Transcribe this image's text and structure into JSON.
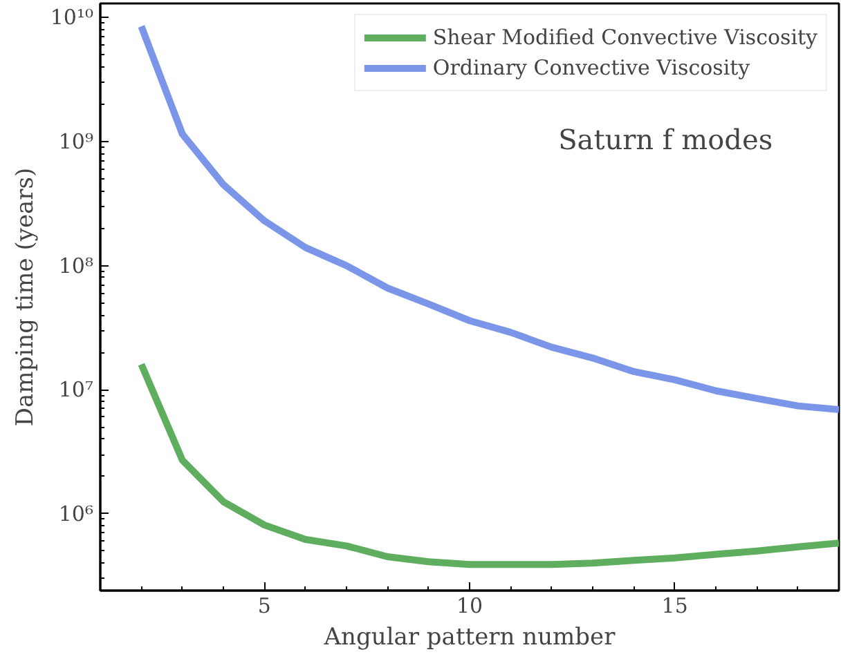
{
  "chart_data": {
    "type": "line",
    "xlabel": "Angular pattern number",
    "ylabel": "Damping time (years)",
    "annotations": [
      "Saturn f modes"
    ],
    "x": [
      2,
      3,
      4,
      5,
      6,
      7,
      8,
      9,
      10,
      11,
      12,
      13,
      14,
      15,
      16,
      17,
      18,
      19
    ],
    "series": [
      {
        "name": "Shear Modified Convective Viscosity",
        "color": "#5fad5f",
        "values": [
          16000000.0,
          2700000.0,
          1250000.0,
          810000.0,
          620000.0,
          550000.0,
          450000.0,
          410000.0,
          390000.0,
          390000.0,
          390000.0,
          400000.0,
          420000.0,
          440000.0,
          470000.0,
          500000.0,
          540000.0,
          580000.0
        ]
      },
      {
        "name": "Ordinary Convective Viscosity",
        "color": "#7b96e8",
        "values": [
          8500000000.0,
          1150000000.0,
          450000000.0,
          230000000.0,
          140000000.0,
          100000000.0,
          66000000.0,
          49000000.0,
          36000000.0,
          29000000.0,
          22000000.0,
          18000000.0,
          14000000.0,
          12000000.0,
          9800000.0,
          8500000.0,
          7400000.0,
          6900000.0
        ]
      }
    ],
    "log": "y",
    "xlim": [
      1,
      19
    ],
    "ylim": [
      240000.0,
      13000000000.0
    ],
    "xticks": [
      5,
      10,
      15
    ],
    "yticks": [
      {
        "value": 1000000.0,
        "label": "10⁶"
      },
      {
        "value": 10000000.0,
        "label": "10⁷"
      },
      {
        "value": 100000000.0,
        "label": "10⁸"
      },
      {
        "value": 1000000000.0,
        "label": "10⁹"
      },
      {
        "value": 10000000000.0,
        "label": "10¹⁰"
      }
    ],
    "legend": "top right",
    "grid": false,
    "line_style": "solid",
    "marker": "none"
  }
}
